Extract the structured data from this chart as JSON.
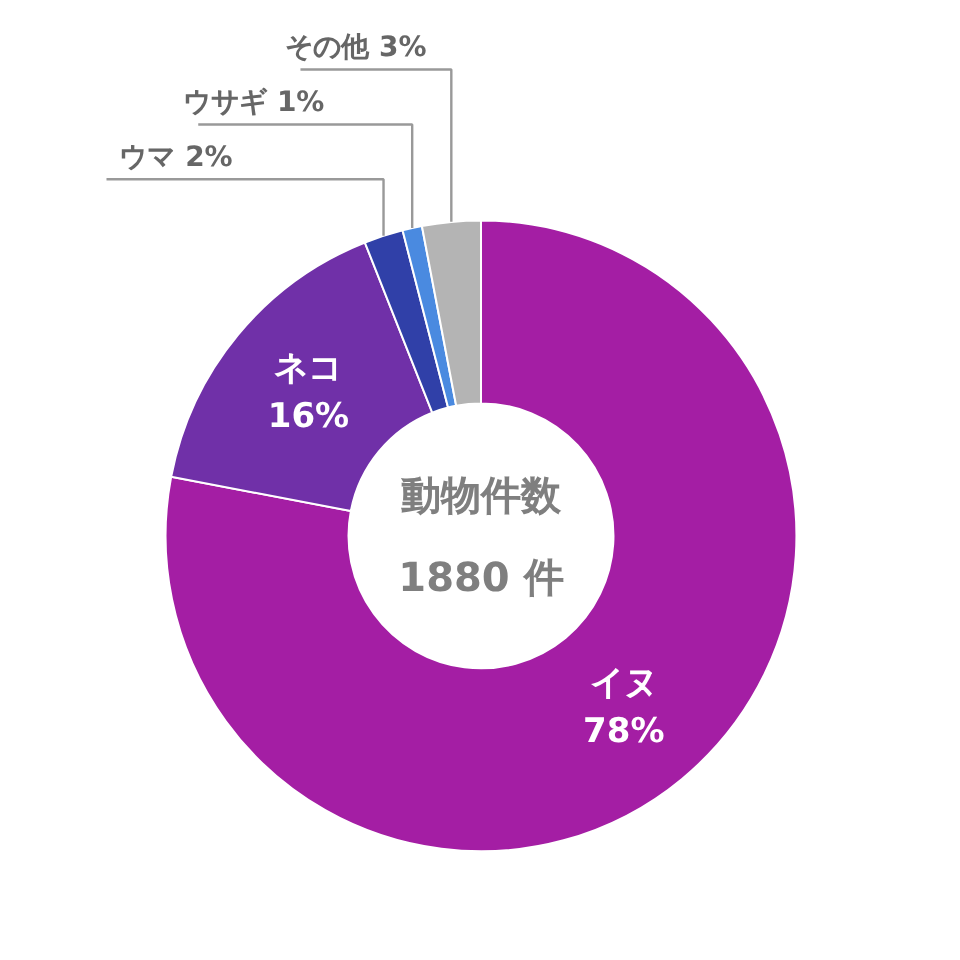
{
  "chart_data": {
    "type": "donut",
    "categories": [
      "イヌ",
      "ネコ",
      "ウマ",
      "ウサギ",
      "その他"
    ],
    "values": [
      78,
      16,
      2,
      1,
      3
    ],
    "value_labels": [
      "78%",
      "16%",
      "2%",
      "1%",
      "3%"
    ],
    "colors": [
      "#a41ea4",
      "#7030a8",
      "#3040a8",
      "#4a8ae0",
      "#b4b4b4"
    ],
    "annotations": [
      "動物件数",
      "1880 件"
    ]
  }
}
